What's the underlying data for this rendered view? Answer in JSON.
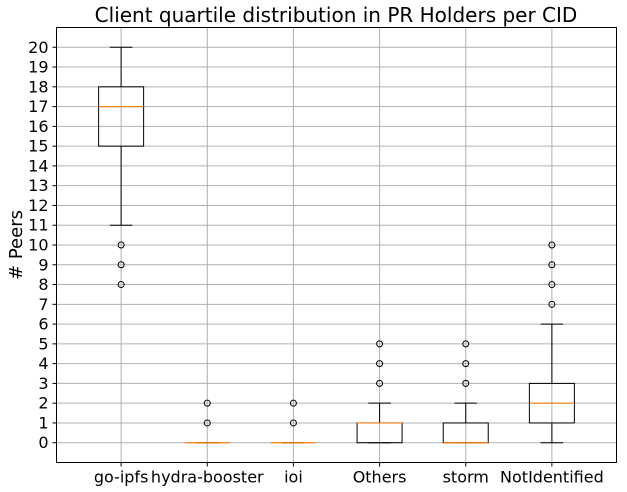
{
  "chart_data": {
    "type": "box",
    "title": "Client quartile distribution in PR Holders per CID",
    "xlabel": "",
    "ylabel": "# Peers",
    "ylim": [
      -1,
      21
    ],
    "yticks": [
      0,
      1,
      2,
      3,
      4,
      5,
      6,
      7,
      8,
      9,
      10,
      11,
      12,
      13,
      14,
      15,
      16,
      17,
      18,
      19,
      20
    ],
    "grid": true,
    "colors": {
      "median": "#ff7f0e",
      "box": "#000000",
      "grid": "#b0b0b0"
    },
    "categories": [
      "go-ipfs",
      "hydra-booster",
      "ioi",
      "Others",
      "storm",
      "NotIdentified"
    ],
    "boxes": [
      {
        "name": "go-ipfs",
        "whislo": 11,
        "q1": 15,
        "med": 17,
        "q3": 18,
        "whishi": 20,
        "fliers": [
          10,
          9,
          8
        ]
      },
      {
        "name": "hydra-booster",
        "whislo": 0,
        "q1": 0,
        "med": 0,
        "q3": 0,
        "whishi": 0,
        "fliers": [
          1,
          2
        ]
      },
      {
        "name": "ioi",
        "whislo": 0,
        "q1": 0,
        "med": 0,
        "q3": 0,
        "whishi": 0,
        "fliers": [
          1,
          2
        ]
      },
      {
        "name": "Others",
        "whislo": 0,
        "q1": 0,
        "med": 1,
        "q3": 1,
        "whishi": 2,
        "fliers": [
          3,
          4,
          5
        ]
      },
      {
        "name": "storm",
        "whislo": 0,
        "q1": 0,
        "med": 0,
        "q3": 1,
        "whishi": 2,
        "fliers": [
          3,
          4,
          5
        ]
      },
      {
        "name": "NotIdentified",
        "whislo": 0,
        "q1": 1,
        "med": 2,
        "q3": 3,
        "whishi": 6,
        "fliers": [
          7,
          8,
          9,
          10
        ]
      }
    ]
  }
}
